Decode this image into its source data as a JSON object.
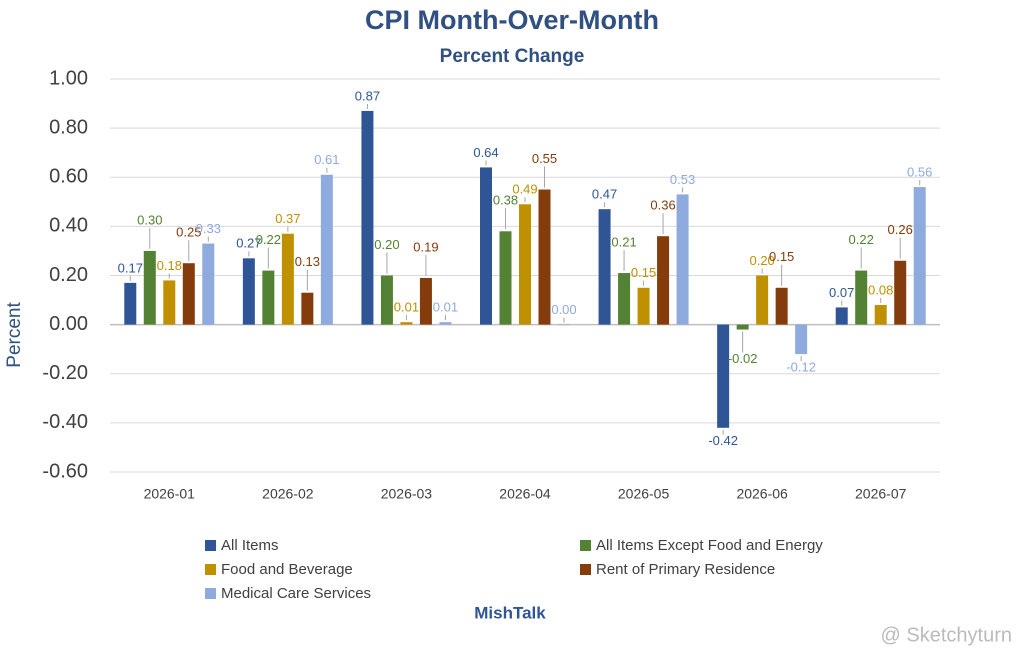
{
  "chart_data": {
    "type": "bar",
    "title": "CPI Month-Over-Month",
    "subtitle": "Percent Change",
    "y_label": "Percent",
    "categories": [
      "2026-01",
      "2026-02",
      "2026-03",
      "2026-04",
      "2026-05",
      "2026-06",
      "2026-07"
    ],
    "series": [
      {
        "name": "All Items",
        "color": "#2f5597",
        "values": [
          0.17,
          0.27,
          0.87,
          0.64,
          0.47,
          -0.42,
          0.07
        ],
        "value_labels": [
          "0.17",
          "0.27",
          "0.87",
          "0.64",
          "0.47",
          "-0.42",
          "0.07"
        ]
      },
      {
        "name": "All Items Except Food and Energy",
        "color": "#548235",
        "values": [
          0.3,
          0.22,
          0.2,
          0.38,
          0.21,
          -0.02,
          0.22
        ],
        "value_labels": [
          "0.30",
          "0.22",
          "0.20",
          "0.38",
          "0.21",
          "-0.02",
          "0.22"
        ]
      },
      {
        "name": "Food and Beverage",
        "color": "#bf9000",
        "values": [
          0.18,
          0.37,
          0.01,
          0.49,
          0.15,
          0.2,
          0.08
        ],
        "value_labels": [
          "0.18",
          "0.37",
          "0.01",
          "0.49",
          "0.15",
          "0.20",
          "0.08"
        ]
      },
      {
        "name": "Rent of Primary Residence",
        "color": "#843c0c",
        "values": [
          0.25,
          0.13,
          0.19,
          0.55,
          0.36,
          0.15,
          0.26
        ],
        "value_labels": [
          "0.25",
          "0.13",
          "0.19",
          "0.55",
          "0.36",
          "0.15",
          "0.26"
        ]
      },
      {
        "name": "Medical Care Services",
        "color": "#8faadc",
        "values": [
          0.33,
          0.61,
          0.01,
          0.0,
          0.53,
          -0.12,
          0.56
        ],
        "value_labels": [
          "0.33",
          "0.61",
          "0.01",
          "0.00",
          "0.53",
          "-0.12",
          "0.56"
        ]
      }
    ],
    "ylim": [
      -0.6,
      1.0
    ],
    "yticks": [
      {
        "value": -0.6,
        "label": "-0.60"
      },
      {
        "value": -0.4,
        "label": "-0.40"
      },
      {
        "value": -0.2,
        "label": "-0.20"
      },
      {
        "value": 0,
        "label": "0.00"
      },
      {
        "value": 0.2,
        "label": "0.20"
      },
      {
        "value": 0.4,
        "label": "0.40"
      },
      {
        "value": 0.6,
        "label": "0.60"
      },
      {
        "value": 0.8,
        "label": "0.80"
      },
      {
        "value": 1.0,
        "label": "1.00"
      }
    ],
    "grid": true,
    "legend": "bottom",
    "source": "MishTalk",
    "watermark": "@ Sketchyturn"
  }
}
